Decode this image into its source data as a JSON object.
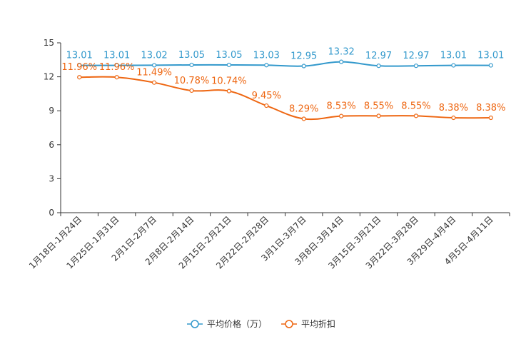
{
  "chart_data": {
    "type": "line",
    "title": "",
    "xlabel": "",
    "ylabel": "",
    "ylim": [
      0,
      15
    ],
    "yticks": [
      0,
      3,
      6,
      9,
      12,
      15
    ],
    "grid": false,
    "legend_position": "bottom-center",
    "categories": [
      "1月18日-1月24日",
      "1月25日-1月31日",
      "2月1日-2月7日",
      "2月8日-2月14日",
      "2月15日-2月21日",
      "2月22日-2月28日",
      "3月1日-3月7日",
      "3月8日-3月14日",
      "3月15日-3月21日",
      "3月22日-3月28日",
      "3月29日-4月4日",
      "4月5日-4月11日"
    ],
    "series": [
      {
        "name": "平均价格（万）",
        "color": "#3399cc",
        "values": [
          13.01,
          13.01,
          13.02,
          13.05,
          13.05,
          13.03,
          12.95,
          13.32,
          12.97,
          12.97,
          13.01,
          13.01
        ],
        "labels": [
          "13.01",
          "13.01",
          "13.02",
          "13.05",
          "13.05",
          "13.03",
          "12.95",
          "13.32",
          "12.97",
          "12.97",
          "13.01",
          "13.01"
        ]
      },
      {
        "name": "平均折扣",
        "color": "#ee6611",
        "values": [
          11.96,
          11.96,
          11.49,
          10.78,
          10.74,
          9.45,
          8.29,
          8.53,
          8.55,
          8.55,
          8.38,
          8.38
        ],
        "labels": [
          "11.96%",
          "11.96%",
          "11.49%",
          "10.78%",
          "10.74%",
          "9.45%",
          "8.29%",
          "8.53%",
          "8.55%",
          "8.55%",
          "8.38%",
          "8.38%"
        ]
      }
    ]
  }
}
